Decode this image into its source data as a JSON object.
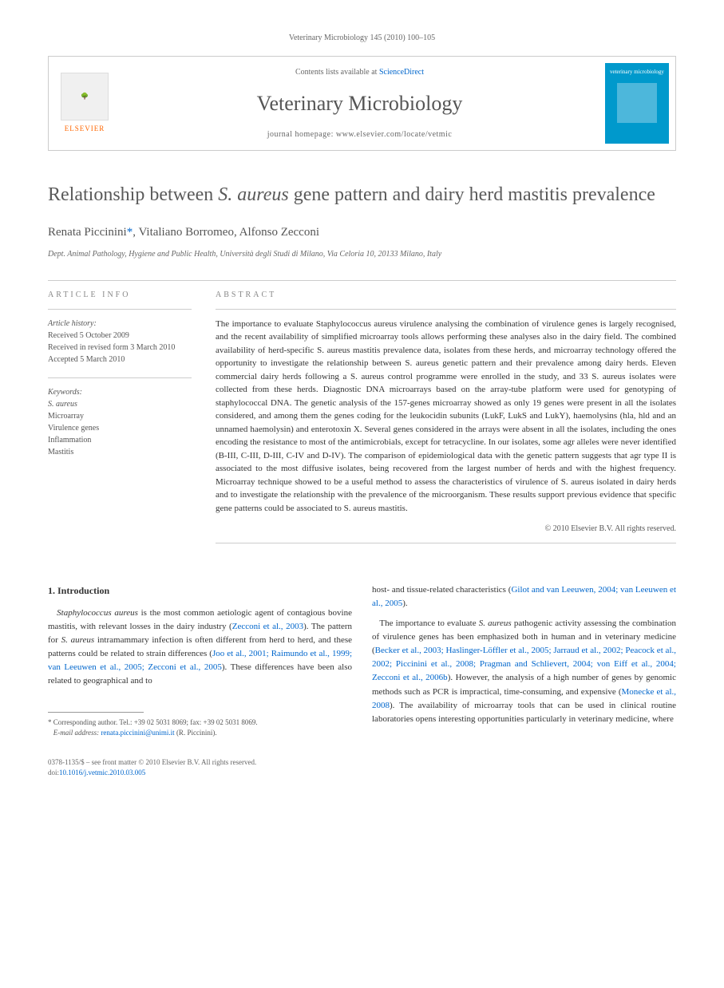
{
  "header_ref": "Veterinary Microbiology 145 (2010) 100–105",
  "header": {
    "contents_prefix": "Contents lists available at ",
    "sciencedirect": "ScienceDirect",
    "journal_name": "Veterinary Microbiology",
    "homepage_prefix": "journal homepage: ",
    "homepage_url": "www.elsevier.com/locate/vetmic",
    "elsevier_label": "ELSEVIER",
    "cover_title": "veterinary microbiology"
  },
  "title_parts": {
    "p1": "Relationship between ",
    "italic": "S. aureus",
    "p2": " gene pattern and dairy herd mastitis prevalence"
  },
  "authors": {
    "a1": "Renata Piccinini",
    "corr": "*",
    "a2": ", Vitaliano Borromeo, Alfonso Zecconi"
  },
  "affiliation": "Dept. Animal Pathology, Hygiene and Public Health, Università degli Studi di Milano, Via Celoria 10, 20133 Milano, Italy",
  "section_labels": {
    "info": "ARTICLE INFO",
    "abstract": "ABSTRACT"
  },
  "history": {
    "label": "Article history:",
    "received": "Received 5 October 2009",
    "revised": "Received in revised form 3 March 2010",
    "accepted": "Accepted 5 March 2010"
  },
  "keywords": {
    "label": "Keywords:",
    "k1": "S. aureus",
    "k2": "Microarray",
    "k3": "Virulence genes",
    "k4": "Inflammation",
    "k5": "Mastitis"
  },
  "abstract": "The importance to evaluate Staphylococcus aureus virulence analysing the combination of virulence genes is largely recognised, and the recent availability of simplified microarray tools allows performing these analyses also in the dairy field. The combined availability of herd-specific S. aureus mastitis prevalence data, isolates from these herds, and microarray technology offered the opportunity to investigate the relationship between S. aureus genetic pattern and their prevalence among dairy herds. Eleven commercial dairy herds following a S. aureus control programme were enrolled in the study, and 33 S. aureus isolates were collected from these herds. Diagnostic DNA microarrays based on the array-tube platform were used for genotyping of staphylococcal DNA. The genetic analysis of the 157-genes microarray showed as only 19 genes were present in all the isolates considered, and among them the genes coding for the leukocidin subunits (LukF, LukS and LukY), haemolysins (hla, hld and an unnamed haemolysin) and enterotoxin X. Several genes considered in the arrays were absent in all the isolates, including the ones encoding the resistance to most of the antimicrobials, except for tetracycline. In our isolates, some agr alleles were never identified (B-III, C-III, D-III, C-IV and D-IV). The comparison of epidemiological data with the genetic pattern suggests that agr type II is associated to the most diffusive isolates, being recovered from the largest number of herds and with the highest frequency. Microarray technique showed to be a useful method to assess the characteristics of virulence of S. aureus isolated in dairy herds and to investigate the relationship with the prevalence of the microorganism. These results support previous evidence that specific gene patterns could be associated to S. aureus mastitis.",
  "copyright": "© 2010 Elsevier B.V. All rights reserved.",
  "intro": {
    "heading": "1. Introduction",
    "p1a": "Staphylococcus aureus",
    "p1b": " is the most common aetiologic agent of contagious bovine mastitis, with relevant losses in the dairy industry (",
    "ref1": "Zecconi et al., 2003",
    "p1c": "). The pattern for ",
    "p1d": "S. aureus",
    "p1e": " intramammary infection is often different from herd to herd, and these patterns could be related to strain differences (",
    "ref2": "Joo et al., 2001; Raimundo et al., 1999; van Leeuwen et al., 2005; Zecconi et al., 2005",
    "p1f": "). These differences have been also related to geographical and to",
    "p2a": "host- and tissue-related characteristics (",
    "ref3": "Gilot and van Leeuwen, 2004; van Leeuwen et al., 2005",
    "p2b": ").",
    "p3a": "The importance to evaluate ",
    "p3b": "S. aureus",
    "p3c": " pathogenic activity assessing the combination of virulence genes has been emphasized both in human and in veterinary medicine (",
    "ref4": "Becker et al., 2003; Haslinger-Löffler et al., 2005; Jarraud et al., 2002; Peacock et al., 2002; Piccinini et al., 2008; Pragman and Schlievert, 2004; von Eiff et al., 2004; Zecconi et al., 2006b",
    "p3d": "). However, the analysis of a high number of genes by genomic methods such as PCR is impractical, time-consuming, and expensive (",
    "ref5": "Monecke et al., 2008",
    "p3e": "). The availability of microarray tools that can be used in clinical routine laboratories opens interesting opportunities particularly in veterinary medicine, where"
  },
  "footnote": {
    "corr": "* Corresponding author. Tel.: +39 02 5031 8069; fax: +39 02 5031 8069.",
    "email_label": "E-mail address: ",
    "email": "renata.piccinini@unimi.it",
    "email_suffix": " (R. Piccinini)."
  },
  "footer": {
    "line1": "0378-1135/$ – see front matter © 2010 Elsevier B.V. All rights reserved.",
    "doi_label": "doi:",
    "doi": "10.1016/j.vetmic.2010.03.005"
  }
}
